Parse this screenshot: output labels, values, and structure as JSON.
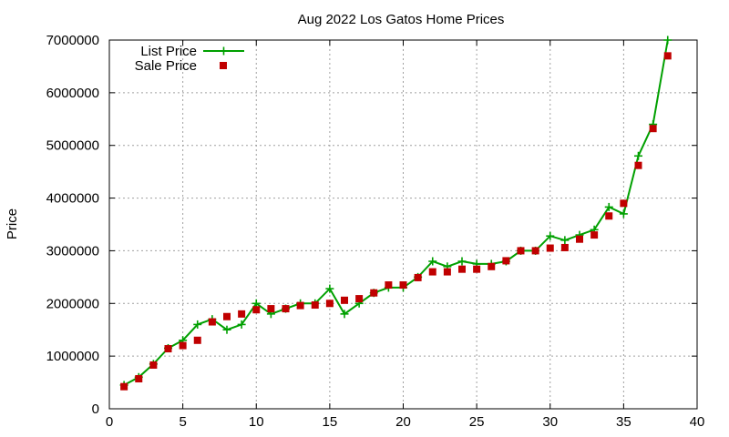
{
  "chart_data": {
    "type": "line",
    "title": "Aug 2022 Los Gatos Home Prices",
    "xlabel": "",
    "ylabel": "Price",
    "xlim": [
      0,
      40
    ],
    "ylim": [
      0,
      7000000
    ],
    "xticks": [
      0,
      5,
      10,
      15,
      20,
      25,
      30,
      35,
      40
    ],
    "yticks": [
      0,
      1000000,
      2000000,
      3000000,
      4000000,
      5000000,
      6000000,
      7000000
    ],
    "grid": true,
    "legend_position": "top-left",
    "x": [
      1,
      2,
      3,
      4,
      5,
      6,
      7,
      8,
      9,
      10,
      11,
      12,
      13,
      14,
      15,
      16,
      17,
      18,
      19,
      20,
      21,
      22,
      23,
      24,
      25,
      26,
      27,
      28,
      29,
      30,
      31,
      32,
      33,
      34,
      35,
      36,
      37,
      38
    ],
    "series": [
      {
        "name": "List Price",
        "style": "line-plus",
        "color": "#00a000",
        "values": [
          450000,
          600000,
          850000,
          1150000,
          1300000,
          1600000,
          1700000,
          1500000,
          1600000,
          2000000,
          1800000,
          1900000,
          2000000,
          2000000,
          2280000,
          1800000,
          2000000,
          2200000,
          2300000,
          2300000,
          2500000,
          2800000,
          2700000,
          2800000,
          2750000,
          2750000,
          2800000,
          3000000,
          3000000,
          3280000,
          3200000,
          3300000,
          3400000,
          3830000,
          3700000,
          4800000,
          5400000,
          7000000
        ]
      },
      {
        "name": "Sale Price",
        "style": "square-points",
        "color": "#c00000",
        "values": [
          420000,
          570000,
          830000,
          1140000,
          1200000,
          1300000,
          1650000,
          1750000,
          1800000,
          1880000,
          1900000,
          1900000,
          1960000,
          1970000,
          2000000,
          2060000,
          2090000,
          2200000,
          2350000,
          2350000,
          2490000,
          2600000,
          2600000,
          2650000,
          2650000,
          2700000,
          2810000,
          3000000,
          3000000,
          3050000,
          3060000,
          3220000,
          3300000,
          3660000,
          3900000,
          4620000,
          5320000,
          6700000
        ]
      }
    ]
  }
}
